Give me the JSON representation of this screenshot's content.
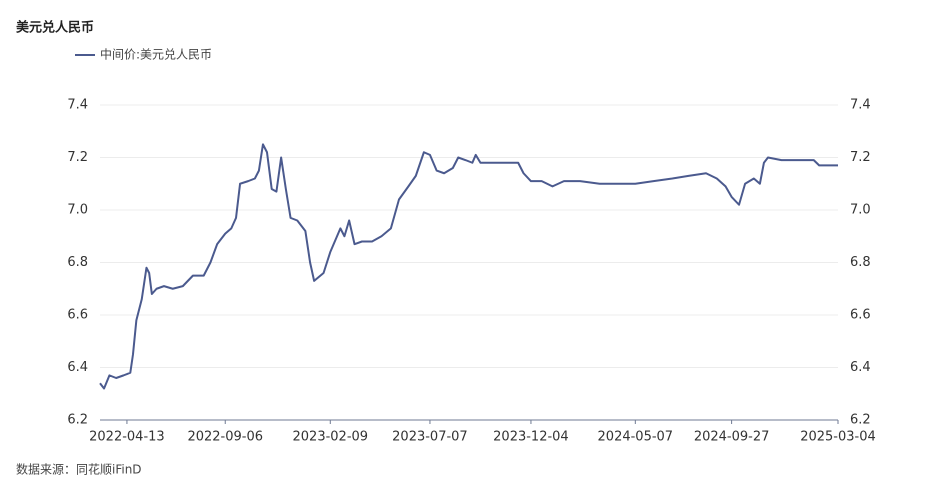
{
  "chart_data": {
    "type": "line",
    "title": "美元兑人民币",
    "source": "数据来源：同花顺iFinD",
    "series": [
      {
        "name": "中间价:美元兑人民币",
        "color": "#4b5a8e",
        "x": [
          "2022-03-04",
          "2022-03-10",
          "2022-03-18",
          "2022-03-28",
          "2022-04-08",
          "2022-04-18",
          "2022-04-22",
          "2022-04-27",
          "2022-05-05",
          "2022-05-12",
          "2022-05-16",
          "2022-05-20",
          "2022-05-27",
          "2022-06-07",
          "2022-06-20",
          "2022-07-05",
          "2022-07-20",
          "2022-08-05",
          "2022-08-15",
          "2022-08-25",
          "2022-09-06",
          "2022-09-15",
          "2022-09-22",
          "2022-09-28",
          "2022-10-10",
          "2022-10-20",
          "2022-10-26",
          "2022-11-01",
          "2022-11-07",
          "2022-11-14",
          "2022-11-21",
          "2022-11-28",
          "2022-12-05",
          "2022-12-12",
          "2022-12-22",
          "2023-01-03",
          "2023-01-10",
          "2023-01-16",
          "2023-01-30",
          "2023-02-09",
          "2023-02-24",
          "2023-03-02",
          "2023-03-09",
          "2023-03-17",
          "2023-03-28",
          "2023-04-12",
          "2023-04-26",
          "2023-05-10",
          "2023-05-22",
          "2023-06-05",
          "2023-06-16",
          "2023-06-28",
          "2023-07-07",
          "2023-07-17",
          "2023-07-28",
          "2023-08-10",
          "2023-08-18",
          "2023-08-29",
          "2023-09-08",
          "2023-09-13",
          "2023-09-20",
          "2023-10-10",
          "2023-11-01",
          "2023-11-15",
          "2023-11-23",
          "2023-12-04",
          "2023-12-20",
          "2024-01-05",
          "2024-01-22",
          "2024-02-15",
          "2024-03-15",
          "2024-04-15",
          "2024-05-07",
          "2024-06-03",
          "2024-07-01",
          "2024-07-25",
          "2024-08-20",
          "2024-09-05",
          "2024-09-18",
          "2024-09-27",
          "2024-10-08",
          "2024-10-17",
          "2024-10-30",
          "2024-11-08",
          "2024-11-14",
          "2024-11-20",
          "2024-12-10",
          "2025-01-10",
          "2025-01-27",
          "2025-02-04",
          "2025-03-04"
        ],
        "values": [
          6.34,
          6.32,
          6.37,
          6.36,
          6.37,
          6.38,
          6.45,
          6.58,
          6.66,
          6.78,
          6.76,
          6.68,
          6.7,
          6.71,
          6.7,
          6.71,
          6.75,
          6.75,
          6.8,
          6.87,
          6.91,
          6.93,
          6.97,
          7.1,
          7.11,
          7.12,
          7.15,
          7.25,
          7.22,
          7.08,
          7.07,
          7.2,
          7.08,
          6.97,
          6.96,
          6.92,
          6.8,
          6.73,
          6.76,
          6.84,
          6.93,
          6.9,
          6.96,
          6.87,
          6.88,
          6.88,
          6.9,
          6.93,
          7.04,
          7.09,
          7.13,
          7.22,
          7.21,
          7.15,
          7.14,
          7.16,
          7.2,
          7.19,
          7.18,
          7.21,
          7.18,
          7.18,
          7.18,
          7.18,
          7.14,
          7.11,
          7.11,
          7.09,
          7.11,
          7.11,
          7.1,
          7.1,
          7.1,
          7.11,
          7.12,
          7.13,
          7.14,
          7.12,
          7.09,
          7.05,
          7.02,
          7.1,
          7.12,
          7.1,
          7.18,
          7.2,
          7.19,
          7.19,
          7.19,
          7.17,
          7.17
        ]
      }
    ],
    "xlim": [
      "2022-03-04",
      "2025-03-04"
    ],
    "xticks": [
      "2022-04-13",
      "2022-09-06",
      "2023-02-09",
      "2023-07-07",
      "2023-12-04",
      "2024-05-07",
      "2024-09-27",
      "2025-03-04"
    ],
    "ylim": [
      6.2,
      7.4
    ],
    "yticks": [
      6.2,
      6.4,
      6.6,
      6.8,
      {
        "value": 7,
        "label": "7.0"
      },
      7.2,
      7.4
    ],
    "y2lim": [
      6.2,
      7.4
    ],
    "y2ticks": [
      6.2,
      6.4,
      6.6,
      6.8,
      {
        "value": 7,
        "label": "7.0"
      },
      7.2,
      7.4
    ],
    "grid": true
  }
}
